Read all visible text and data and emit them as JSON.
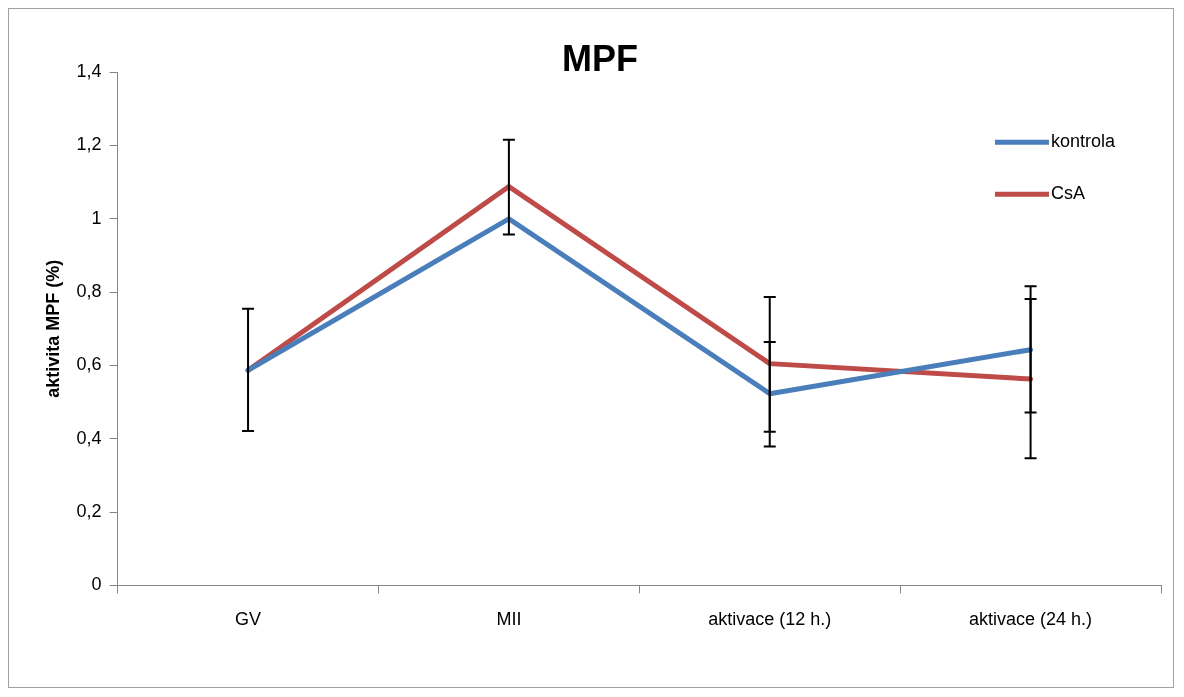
{
  "chart_data": {
    "type": "line",
    "title": "MPF",
    "ylabel": "aktivita MPF (%)",
    "categories": [
      "GV",
      "MII",
      "aktivace (12 h.)",
      "aktivace (24 h.)"
    ],
    "series": [
      {
        "name": "kontrola",
        "color": "#4a7ebb",
        "values": [
          0.587,
          1.0,
          0.523,
          0.643
        ],
        "errors": [
          null,
          null,
          [
            0.379,
            0.664
          ],
          [
            0.472,
            0.816
          ]
        ]
      },
      {
        "name": "CsA",
        "color": "#be4b48",
        "values": [
          0.587,
          1.088,
          0.605,
          0.563
        ],
        "errors": [
          [
            0.421,
            0.755
          ],
          [
            0.957,
            1.216
          ],
          [
            0.419,
            0.787
          ],
          [
            0.347,
            0.781
          ]
        ]
      }
    ],
    "ylim": [
      0,
      1.4
    ],
    "yticks": [
      0,
      {
        "value": 0.2,
        "label": "0,2"
      },
      {
        "value": 0.4,
        "label": "0,4"
      },
      {
        "value": 0.6,
        "label": "0,6"
      },
      {
        "value": 0.8,
        "label": "0,8"
      },
      1,
      {
        "value": 1.2,
        "label": "1,2"
      },
      {
        "value": 1.4,
        "label": "1,4"
      }
    ],
    "grid": false,
    "legend": "top right",
    "marker": "none",
    "line_style": "solid"
  }
}
